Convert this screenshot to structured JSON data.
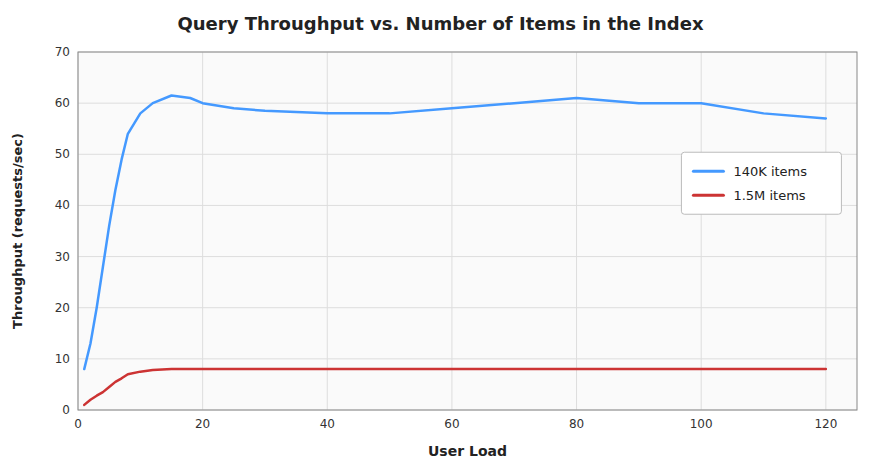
{
  "chart_data": {
    "type": "line",
    "title": "Query Throughput vs. Number of Items in the Index",
    "xlabel": "User Load",
    "ylabel": "Throughput (requests/sec)",
    "x": [
      1,
      2,
      3,
      4,
      5,
      6,
      7,
      8,
      10,
      12,
      15,
      18,
      20,
      25,
      30,
      40,
      50,
      60,
      70,
      80,
      90,
      100,
      110,
      120
    ],
    "series": [
      {
        "name": "140K items",
        "color": "#4499ff",
        "values": [
          8,
          13,
          20,
          28,
          36,
          43,
          49,
          54,
          58,
          60,
          61.5,
          61,
          60,
          59,
          58.5,
          58,
          58,
          59,
          60,
          61,
          60,
          60,
          58,
          57
        ]
      },
      {
        "name": "1.5M items",
        "color": "#cc3333",
        "values": [
          1,
          2,
          2.8,
          3.5,
          4.5,
          5.5,
          6.2,
          7,
          7.5,
          7.8,
          8,
          8,
          8,
          8,
          8,
          8,
          8,
          8,
          8,
          8,
          8,
          8,
          8,
          8
        ]
      }
    ],
    "xlim": [
      0,
      125
    ],
    "ylim": [
      0,
      70
    ],
    "xticks": [
      0,
      20,
      40,
      60,
      80,
      100,
      120
    ],
    "yticks": [
      0,
      10,
      20,
      30,
      40,
      50,
      60,
      70
    ],
    "grid": true,
    "legend": "upper right"
  }
}
